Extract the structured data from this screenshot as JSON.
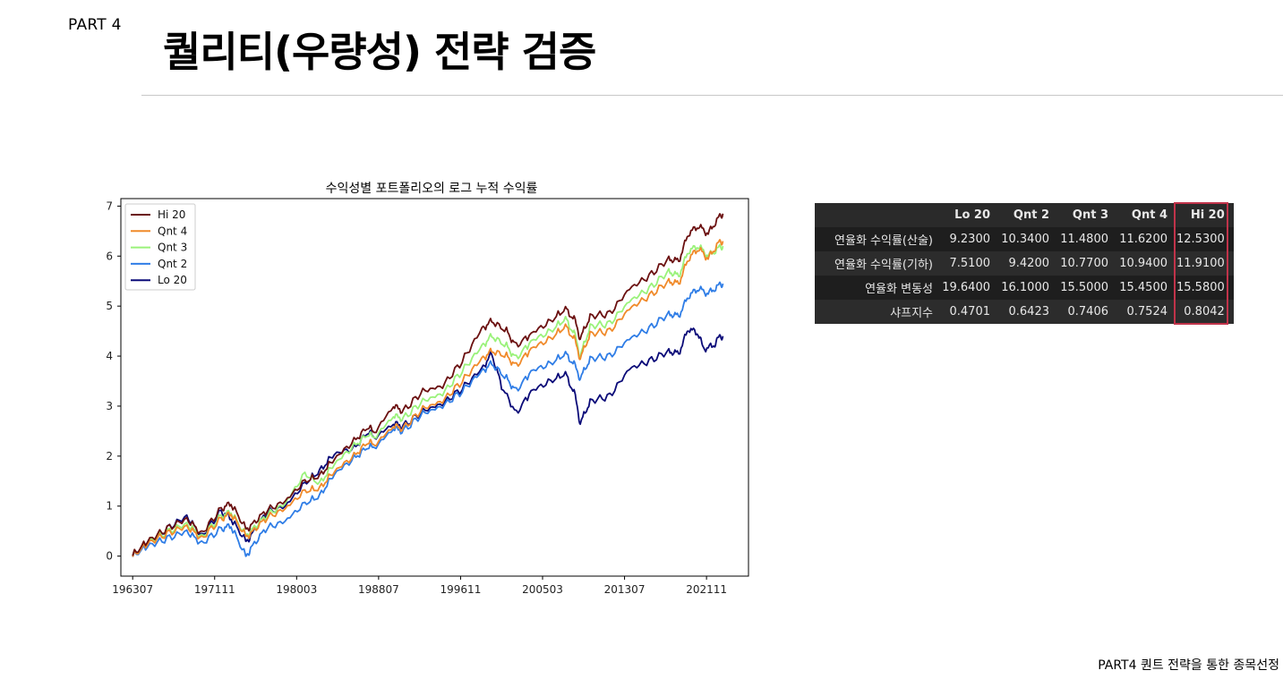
{
  "header": {
    "part": "PART 4",
    "title": "퀄리티(우량성) 전략 검증"
  },
  "chart_data": {
    "type": "line",
    "title": "수익성별 포트폴리오의 로그 누적 수익률",
    "xlabel": "",
    "ylabel": "",
    "x_ticks": [
      "196307",
      "197111",
      "198003",
      "198807",
      "199611",
      "200503",
      "201307",
      "202111"
    ],
    "y_ticks": [
      "0",
      "1",
      "2",
      "3",
      "4",
      "5",
      "6",
      "7"
    ],
    "x_range": [
      1962.3,
      2026.1
    ],
    "ylim": [
      -0.4,
      7.15
    ],
    "legend_position": "top-left",
    "series": [
      {
        "name": "Hi 20",
        "color": "#6b1010",
        "points": [
          [
            1963.5,
            0.02
          ],
          [
            1965,
            0.3
          ],
          [
            1967,
            0.55
          ],
          [
            1969,
            0.75
          ],
          [
            1970.5,
            0.45
          ],
          [
            1972.5,
            0.95
          ],
          [
            1973.5,
            1.05
          ],
          [
            1975,
            0.55
          ],
          [
            1975.5,
            0.6
          ],
          [
            1977,
            0.9
          ],
          [
            1979,
            1.1
          ],
          [
            1981,
            1.5
          ],
          [
            1982.5,
            1.6
          ],
          [
            1984,
            1.95
          ],
          [
            1986,
            2.3
          ],
          [
            1987.5,
            2.6
          ],
          [
            1988,
            2.45
          ],
          [
            1990,
            3.0
          ],
          [
            1991,
            2.9
          ],
          [
            1993,
            3.3
          ],
          [
            1995,
            3.4
          ],
          [
            1997,
            3.9
          ],
          [
            1999,
            4.55
          ],
          [
            2000,
            4.7
          ],
          [
            2001.5,
            4.5
          ],
          [
            2002.5,
            4.2
          ],
          [
            2004,
            4.45
          ],
          [
            2006,
            4.7
          ],
          [
            2007.5,
            4.95
          ],
          [
            2008.5,
            4.7
          ],
          [
            2009,
            4.35
          ],
          [
            2010,
            4.8
          ],
          [
            2012,
            4.85
          ],
          [
            2014,
            5.35
          ],
          [
            2016,
            5.6
          ],
          [
            2018,
            5.95
          ],
          [
            2019,
            5.9
          ],
          [
            2020,
            6.45
          ],
          [
            2021,
            6.6
          ],
          [
            2022,
            6.45
          ],
          [
            2023,
            6.75
          ],
          [
            2023.5,
            6.85
          ]
        ]
      },
      {
        "name": "Qnt 4",
        "color": "#f08a2a",
        "points": [
          [
            1963.5,
            0.0
          ],
          [
            1965,
            0.25
          ],
          [
            1967,
            0.45
          ],
          [
            1969,
            0.6
          ],
          [
            1970.5,
            0.35
          ],
          [
            1972.5,
            0.75
          ],
          [
            1973.5,
            0.85
          ],
          [
            1975,
            0.4
          ],
          [
            1975.5,
            0.45
          ],
          [
            1977,
            0.75
          ],
          [
            1979,
            0.95
          ],
          [
            1981,
            1.3
          ],
          [
            1982.5,
            1.35
          ],
          [
            1984,
            1.7
          ],
          [
            1986,
            2.0
          ],
          [
            1987.5,
            2.3
          ],
          [
            1988,
            2.2
          ],
          [
            1990,
            2.6
          ],
          [
            1991,
            2.55
          ],
          [
            1993,
            2.95
          ],
          [
            1995,
            3.1
          ],
          [
            1997,
            3.5
          ],
          [
            1999,
            3.95
          ],
          [
            2000,
            4.1
          ],
          [
            2001.5,
            4.0
          ],
          [
            2002.5,
            3.8
          ],
          [
            2004,
            4.15
          ],
          [
            2006,
            4.35
          ],
          [
            2007.5,
            4.6
          ],
          [
            2008.5,
            4.3
          ],
          [
            2009,
            3.95
          ],
          [
            2010,
            4.45
          ],
          [
            2012,
            4.5
          ],
          [
            2014,
            4.95
          ],
          [
            2016,
            5.2
          ],
          [
            2018,
            5.5
          ],
          [
            2019,
            5.45
          ],
          [
            2020,
            5.95
          ],
          [
            2021,
            6.15
          ],
          [
            2022,
            5.95
          ],
          [
            2023,
            6.25
          ],
          [
            2023.5,
            6.3
          ]
        ]
      },
      {
        "name": "Qnt 3",
        "color": "#9af27a",
        "points": [
          [
            1963.5,
            0.02
          ],
          [
            1965,
            0.28
          ],
          [
            1967,
            0.48
          ],
          [
            1969,
            0.65
          ],
          [
            1970.5,
            0.38
          ],
          [
            1972.5,
            0.8
          ],
          [
            1973.5,
            0.88
          ],
          [
            1975,
            0.42
          ],
          [
            1975.5,
            0.5
          ],
          [
            1977,
            0.8
          ],
          [
            1979,
            1.05
          ],
          [
            1981,
            1.65
          ],
          [
            1982.5,
            1.45
          ],
          [
            1984,
            1.85
          ],
          [
            1986,
            2.2
          ],
          [
            1987.5,
            2.45
          ],
          [
            1988,
            2.35
          ],
          [
            1990,
            2.8
          ],
          [
            1991,
            2.75
          ],
          [
            1993,
            3.1
          ],
          [
            1995,
            3.25
          ],
          [
            1997,
            3.7
          ],
          [
            1999,
            4.2
          ],
          [
            2000,
            4.4
          ],
          [
            2001.5,
            4.2
          ],
          [
            2002.5,
            3.95
          ],
          [
            2004,
            4.3
          ],
          [
            2006,
            4.5
          ],
          [
            2007.5,
            4.75
          ],
          [
            2008.5,
            4.4
          ],
          [
            2009,
            4.0
          ],
          [
            2010,
            4.6
          ],
          [
            2012,
            4.65
          ],
          [
            2014,
            5.1
          ],
          [
            2016,
            5.35
          ],
          [
            2018,
            5.7
          ],
          [
            2019,
            5.6
          ],
          [
            2020,
            6.1
          ],
          [
            2021,
            6.2
          ],
          [
            2022,
            6.0
          ],
          [
            2023,
            6.15
          ],
          [
            2023.5,
            6.2
          ]
        ]
      },
      {
        "name": "Qnt 2",
        "color": "#2f7de6",
        "points": [
          [
            1963.5,
            0.0
          ],
          [
            1965,
            0.2
          ],
          [
            1967,
            0.35
          ],
          [
            1969,
            0.5
          ],
          [
            1970.5,
            0.25
          ],
          [
            1972.5,
            0.55
          ],
          [
            1973.5,
            0.6
          ],
          [
            1975,
            0.0
          ],
          [
            1975.5,
            0.15
          ],
          [
            1977,
            0.55
          ],
          [
            1979,
            0.7
          ],
          [
            1981,
            1.05
          ],
          [
            1982.5,
            1.2
          ],
          [
            1984,
            1.65
          ],
          [
            1986,
            1.95
          ],
          [
            1987.5,
            2.2
          ],
          [
            1988,
            2.15
          ],
          [
            1990,
            2.55
          ],
          [
            1991,
            2.5
          ],
          [
            1993,
            2.85
          ],
          [
            1995,
            3.0
          ],
          [
            1997,
            3.3
          ],
          [
            1999,
            3.7
          ],
          [
            2000,
            3.85
          ],
          [
            2001.5,
            3.55
          ],
          [
            2002.5,
            3.3
          ],
          [
            2004,
            3.7
          ],
          [
            2006,
            3.85
          ],
          [
            2007.5,
            4.05
          ],
          [
            2008.5,
            3.8
          ],
          [
            2009,
            3.55
          ],
          [
            2010,
            3.95
          ],
          [
            2012,
            4.0
          ],
          [
            2014,
            4.35
          ],
          [
            2016,
            4.55
          ],
          [
            2018,
            4.85
          ],
          [
            2019,
            4.8
          ],
          [
            2020,
            5.2
          ],
          [
            2021,
            5.35
          ],
          [
            2022,
            5.25
          ],
          [
            2023,
            5.4
          ],
          [
            2023.5,
            5.45
          ]
        ]
      },
      {
        "name": "Lo 20",
        "color": "#0a0a78",
        "points": [
          [
            1963.5,
            0.0
          ],
          [
            1965,
            0.25
          ],
          [
            1967,
            0.55
          ],
          [
            1969,
            0.8
          ],
          [
            1970.5,
            0.4
          ],
          [
            1972.5,
            0.9
          ],
          [
            1973.5,
            0.75
          ],
          [
            1975,
            0.3
          ],
          [
            1975.5,
            0.4
          ],
          [
            1977,
            0.85
          ],
          [
            1979,
            1.0
          ],
          [
            1981,
            1.45
          ],
          [
            1982.5,
            1.7
          ],
          [
            1984,
            2.05
          ],
          [
            1986,
            2.15
          ],
          [
            1987.5,
            2.5
          ],
          [
            1988,
            2.35
          ],
          [
            1990,
            2.65
          ],
          [
            1991,
            2.6
          ],
          [
            1993,
            2.9
          ],
          [
            1995,
            3.05
          ],
          [
            1997,
            3.35
          ],
          [
            1999,
            3.75
          ],
          [
            2000,
            4.05
          ],
          [
            2001,
            3.4
          ],
          [
            2002.5,
            2.85
          ],
          [
            2004,
            3.3
          ],
          [
            2006,
            3.5
          ],
          [
            2007.5,
            3.65
          ],
          [
            2008.5,
            3.2
          ],
          [
            2009,
            2.65
          ],
          [
            2010,
            3.1
          ],
          [
            2012,
            3.2
          ],
          [
            2014,
            3.75
          ],
          [
            2016,
            3.9
          ],
          [
            2018,
            4.1
          ],
          [
            2019,
            4.05
          ],
          [
            2020,
            4.55
          ],
          [
            2021,
            4.45
          ],
          [
            2021.5,
            4.15
          ],
          [
            2022.5,
            4.2
          ],
          [
            2023,
            4.35
          ],
          [
            2023.5,
            4.4
          ]
        ]
      }
    ]
  },
  "stats_table": {
    "columns": [
      "Lo 20",
      "Qnt 2",
      "Qnt 3",
      "Qnt 4",
      "Hi 20"
    ],
    "rows": [
      {
        "label": "연율화 수익률(산술)",
        "values": [
          "9.2300",
          "10.3400",
          "11.4800",
          "11.6200",
          "12.5300"
        ]
      },
      {
        "label": "연율화 수익률(기하)",
        "values": [
          "7.5100",
          "9.4200",
          "10.7700",
          "10.9400",
          "11.9100"
        ]
      },
      {
        "label": "연율화 변동성",
        "values": [
          "19.6400",
          "16.1000",
          "15.5000",
          "15.4500",
          "15.5800"
        ]
      },
      {
        "label": "샤프지수",
        "values": [
          "0.4701",
          "0.6423",
          "0.7406",
          "0.7524",
          "0.8042"
        ]
      }
    ],
    "highlight_color": "#c0334a"
  },
  "footer": {
    "text": "PART4 퀀트 전략을 통한 종목선정"
  }
}
